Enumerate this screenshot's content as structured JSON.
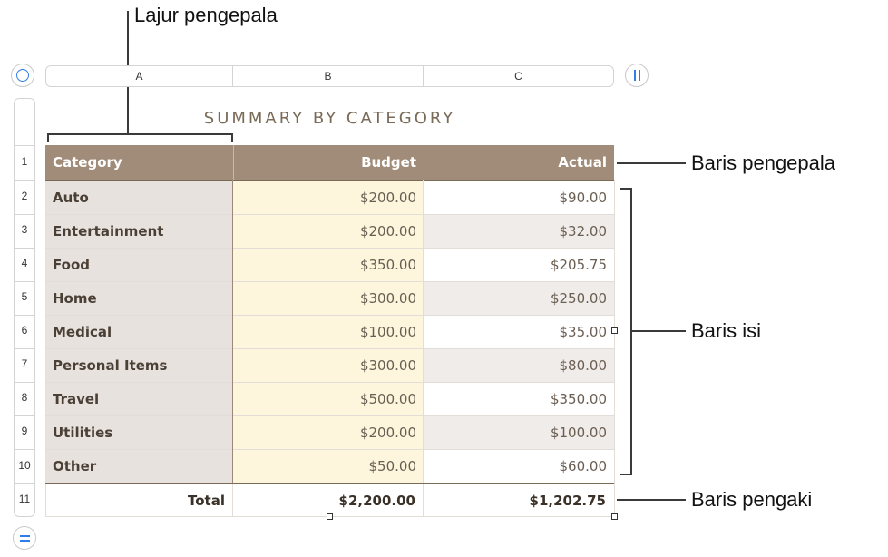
{
  "callouts": {
    "header_column": "Lajur pengepala",
    "header_row": "Baris pengepala",
    "body_rows": "Baris isi",
    "footer_row": "Baris pengaki"
  },
  "column_letters": [
    "A",
    "B",
    "C"
  ],
  "row_numbers": [
    "1",
    "2",
    "3",
    "4",
    "5",
    "6",
    "7",
    "8",
    "9",
    "10",
    "11"
  ],
  "table": {
    "title": "SUMMARY BY CATEGORY",
    "headers": [
      "Category",
      "Budget",
      "Actual"
    ],
    "rows": [
      {
        "category": "Auto",
        "budget": "$200.00",
        "actual": "$90.00"
      },
      {
        "category": "Entertainment",
        "budget": "$200.00",
        "actual": "$32.00"
      },
      {
        "category": "Food",
        "budget": "$350.00",
        "actual": "$205.75"
      },
      {
        "category": "Home",
        "budget": "$300.00",
        "actual": "$250.00"
      },
      {
        "category": "Medical",
        "budget": "$100.00",
        "actual": "$35.00"
      },
      {
        "category": "Personal Items",
        "budget": "$300.00",
        "actual": "$80.00"
      },
      {
        "category": "Travel",
        "budget": "$500.00",
        "actual": "$350.00"
      },
      {
        "category": "Utilities",
        "budget": "$200.00",
        "actual": "$100.00"
      },
      {
        "category": "Other",
        "budget": "$50.00",
        "actual": "$60.00"
      }
    ],
    "footer": {
      "label": "Total",
      "budget": "$2,200.00",
      "actual": "$1,202.75"
    }
  },
  "icons": {
    "select_all": "circle-select-icon",
    "add_column": "pause-bars-icon",
    "add_row": "equals-icon"
  },
  "colors": {
    "header_bg": "#a08c78",
    "category_bg": "#e8e2de",
    "budget_bg": "#fdf6dd",
    "accent": "#2f7ee8"
  }
}
